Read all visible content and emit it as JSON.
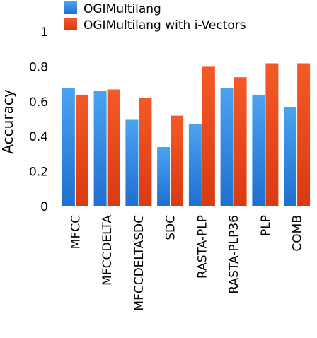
{
  "chart_data": {
    "type": "bar",
    "categories": [
      "MFCC",
      "MFCCDELTA",
      "MFCCDELTASDC",
      "SDC",
      "RASTA-PLP",
      "RASTA-PLP36",
      "PLP",
      "COMB"
    ],
    "series": [
      {
        "name": "OGIMultilang",
        "values": [
          0.68,
          0.66,
          0.5,
          0.34,
          0.47,
          0.68,
          0.64,
          0.57
        ],
        "color": "#2f86e0"
      },
      {
        "name": "OGIMultilang with i-Vectors",
        "values": [
          0.64,
          0.67,
          0.62,
          0.52,
          0.8,
          0.74,
          0.82,
          0.82
        ],
        "color": "#ee4a1c"
      }
    ],
    "ylabel": "Accuracy",
    "xlabel": "",
    "ylim": [
      0,
      1
    ],
    "yticks": [
      0,
      0.2,
      0.4,
      0.6,
      0.8,
      1
    ],
    "ytick_labels": [
      "0",
      "0.2",
      "0.4",
      "0.6",
      "0.8",
      "1"
    ],
    "grid": false,
    "legend_position": "top"
  }
}
